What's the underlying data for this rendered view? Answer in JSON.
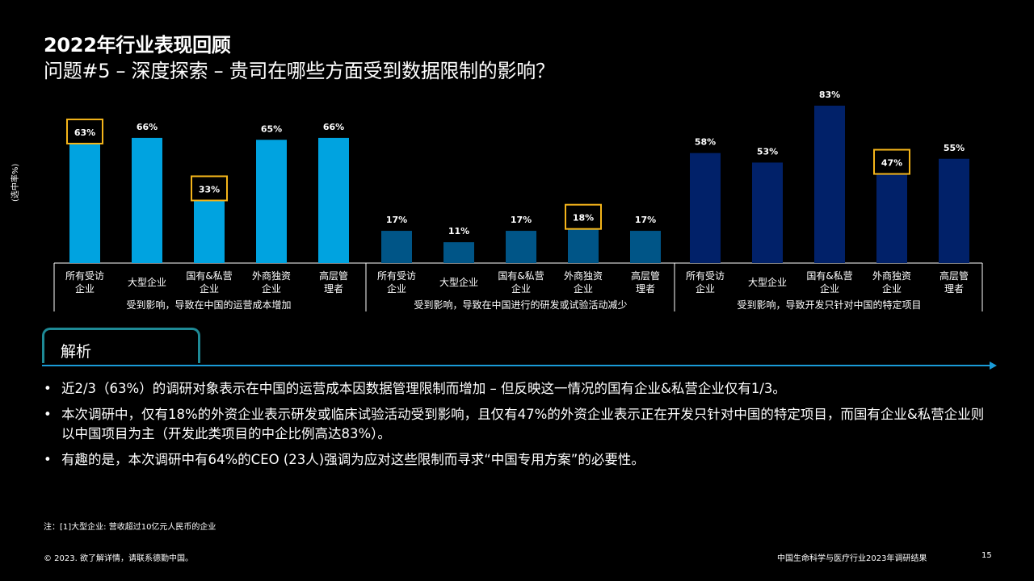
{
  "title_line1": "2022年行业表现回顾",
  "title_line2": "问题#5 – 深度探索 – 贵司在哪些方面受到数据限制的影响？",
  "chart_data": {
    "type": "bar",
    "ylabel": "(选中率%)",
    "ylim": [
      0,
      90
    ],
    "groups": [
      {
        "label": "受到影响，导致在中国的运营成本增加",
        "color": "#00a3e0",
        "categories": [
          "所有受访企业",
          "大型企业",
          "国有&私营企业",
          "外商独资企业",
          "高层管理者"
        ],
        "category_lines": [
          [
            "所有受访",
            "企业"
          ],
          [
            "大型企业"
          ],
          [
            "国有&私营",
            "企业"
          ],
          [
            "外商独资",
            "企业"
          ],
          [
            "高层管",
            "理者"
          ]
        ],
        "values": [
          63,
          66,
          33,
          65,
          66
        ],
        "labels": [
          "63%",
          "66%",
          "33%",
          "65%",
          "66%"
        ],
        "highlighted": [
          0,
          2
        ]
      },
      {
        "label": "受到影响，导致在中国进行的研发或试验活动减少",
        "color": "#005587",
        "categories": [
          "所有受访企业",
          "大型企业",
          "国有&私营企业",
          "外商独资企业",
          "高层管理者"
        ],
        "category_lines": [
          [
            "所有受访",
            "企业"
          ],
          [
            "大型企业"
          ],
          [
            "国有&私营",
            "企业"
          ],
          [
            "外商独资",
            "企业"
          ],
          [
            "高层管",
            "理者"
          ]
        ],
        "values": [
          17,
          11,
          17,
          18,
          17
        ],
        "labels": [
          "17%",
          "11%",
          "17%",
          "18%",
          "17%"
        ],
        "highlighted": [
          3
        ]
      },
      {
        "label": "受到影响，导致开发只针对中国的特定项目",
        "color": "#012169",
        "categories": [
          "所有受访企业",
          "大型企业",
          "国有&私营企业",
          "外商独资企业",
          "高层管理者"
        ],
        "category_lines": [
          [
            "所有受访",
            "企业"
          ],
          [
            "大型企业"
          ],
          [
            "国有&私营",
            "企业"
          ],
          [
            "外商独资",
            "企业"
          ],
          [
            "高层管",
            "理者"
          ]
        ],
        "values": [
          58,
          53,
          83,
          47,
          55
        ],
        "labels": [
          "58%",
          "53%",
          "83%",
          "47%",
          "55%"
        ],
        "highlighted": [
          3
        ]
      }
    ],
    "highlight_color": "#f5b51a"
  },
  "analysis": {
    "title": "解析",
    "bullets": [
      "近2/3（63%）的调研对象表示在中国的运营成本因数据管理限制而增加 – 但反映这一情况的国有企业&私营企业仅有1/3。",
      "本次调研中，仅有18%的外资企业表示研发或临床试验活动受到影响，且仅有47%的外资企业表示正在开发只针对中国的特定项目，而国有企业&私营企业则以中国项目为主（开发此类项目的中企比例高达83%）。",
      "有趣的是，本次调研中有64%的CEO (23人)强调为应对这些限制而寻求“中国专用方案”的必要性。"
    ]
  },
  "note": "注：[1]大型企业: 营收超过10亿元人民币的企业",
  "footer_left": "© 2023. 欲了解详情，请联系德勤中国。",
  "footer_right": "中国生命科学与医疗行业2023年调研结果",
  "page_number": "15"
}
